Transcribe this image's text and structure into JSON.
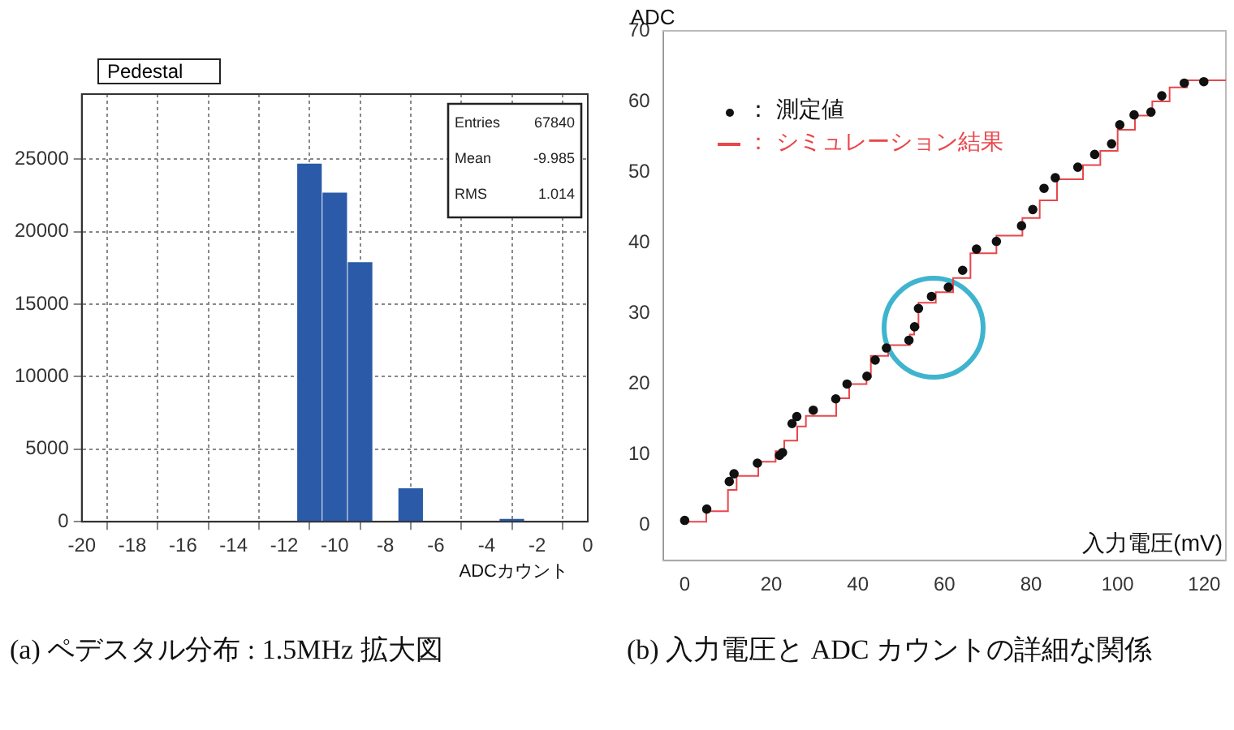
{
  "chart_data": [
    {
      "type": "histogram",
      "title": "Pedestal",
      "subtitle": "(a) ペデスタル分布 : 1.5MHz 拡大図",
      "xlabel": "ADCカウント",
      "color": "#2a5aa8",
      "bins": [
        -19.5,
        -18.5,
        -17.5,
        -16.5,
        -15.5,
        -14.5,
        -13.5,
        -12.5,
        -11.5,
        -10.5,
        -9.5,
        -8.5,
        -7.5,
        -6.5,
        -5.5,
        -4.5,
        -3.5,
        -2.5,
        -1.5,
        -0.5
      ],
      "values": [
        0,
        0,
        0,
        0,
        0,
        0,
        0,
        0,
        24700,
        22700,
        17900,
        0,
        2300,
        0,
        0,
        0,
        200,
        0,
        0
      ],
      "xlim": [
        -20,
        0
      ],
      "ylim": [
        0,
        29500
      ],
      "xticks": [
        -20,
        -18,
        -16,
        -14,
        -12,
        -10,
        -8,
        -6,
        -4,
        -2,
        0
      ],
      "yticks": [
        0,
        5000,
        10000,
        15000,
        20000,
        25000
      ],
      "grid": true,
      "annotations": [
        "Entries",
        "67840",
        "Mean",
        "-9.985",
        "RMS",
        "1.014"
      ]
    },
    {
      "type": "scatter",
      "subtitle": "(b) 入力電圧と ADC カウントの詳細な関係",
      "xlabel": "入力電圧(mV)",
      "ylabel": "ADC",
      "legend": "top left",
      "xlim": [
        -5,
        125
      ],
      "ylim": [
        -5,
        70
      ],
      "xticks": [
        0,
        20,
        40,
        60,
        80,
        100,
        120
      ],
      "yticks": [
        0,
        10,
        20,
        30,
        40,
        50,
        60,
        70
      ],
      "series": [
        {
          "name": "： 測定値",
          "color": "#111111",
          "marker": "circle",
          "x": [
            0,
            5.1,
            10.3,
            11.4,
            16.8,
            21.9,
            22.6,
            24.8,
            25.9,
            29.7,
            34.9,
            37.5,
            42.1,
            44,
            46.6,
            51.8,
            53.1,
            54,
            57,
            60.9,
            64.2,
            67.4,
            72,
            77.8,
            80.4,
            83,
            85.6,
            90.8,
            94.7,
            98.6,
            100.5,
            103.8,
            107.7,
            110.2,
            115.4,
            119.9
          ],
          "values": [
            0.7,
            2.3,
            6.2,
            7.3,
            8.8,
            9.9,
            10.3,
            14.4,
            15.4,
            16.3,
            17.9,
            20,
            21.1,
            23.4,
            25.1,
            26.2,
            28.1,
            30.7,
            32.4,
            33.7,
            36.1,
            39.1,
            40.2,
            42.4,
            44.7,
            47.7,
            49.2,
            50.7,
            52.5,
            54,
            56.7,
            58.1,
            58.5,
            60.8,
            62.6,
            62.8
          ]
        },
        {
          "name": "： シミュレーション結果",
          "color": "#e8474c",
          "type": "step",
          "marker": "none",
          "x": [
            0,
            5,
            10,
            12,
            17,
            21,
            23,
            26,
            28,
            35,
            38,
            42,
            43,
            47,
            52,
            53,
            54,
            58,
            62,
            66,
            72,
            78,
            82,
            86,
            92,
            96,
            100,
            104,
            108,
            112,
            116,
            125
          ],
          "values": [
            0.5,
            2,
            5,
            7,
            9,
            10.5,
            12,
            14,
            15.5,
            18,
            20,
            21,
            24,
            25.5,
            27,
            28,
            31.5,
            33,
            35,
            38.5,
            41,
            43.5,
            46,
            49,
            51,
            53,
            56,
            58,
            60,
            62,
            63,
            63
          ]
        }
      ]
    }
  ]
}
